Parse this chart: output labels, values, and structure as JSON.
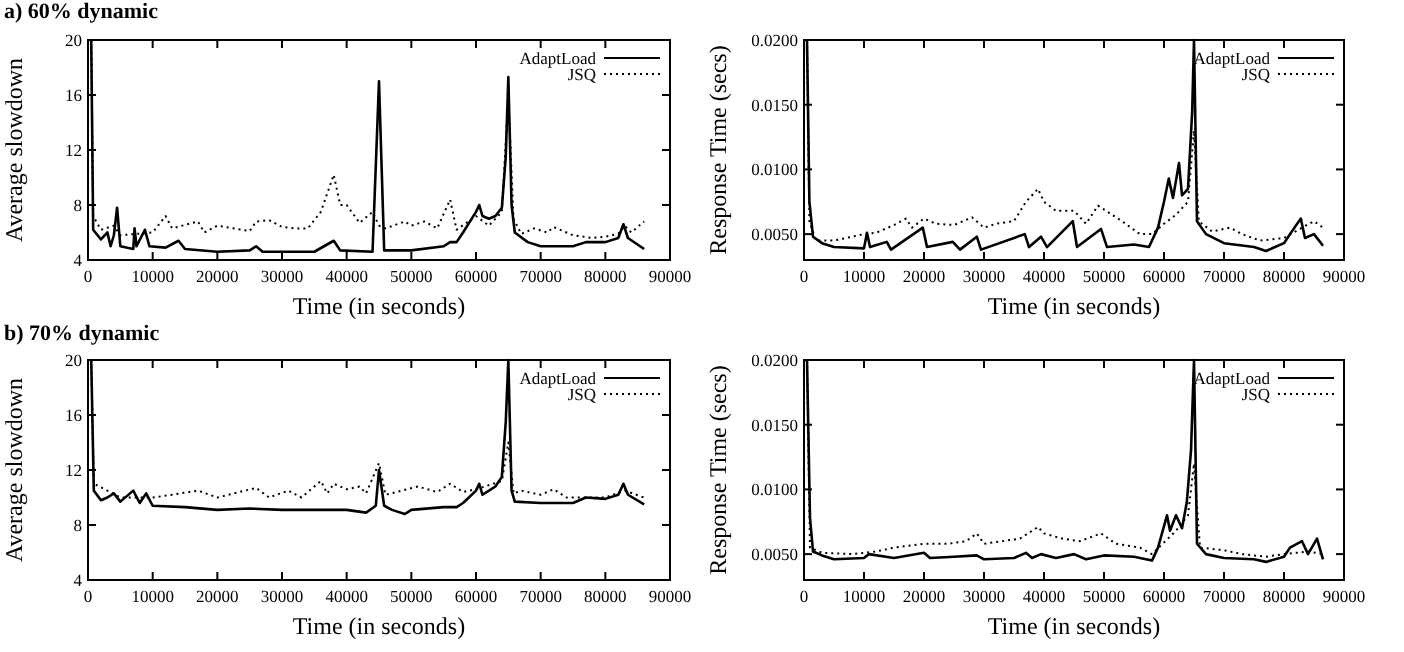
{
  "chart_data": [
    {
      "type": "line",
      "title": "a) 60% dynamic",
      "xlabel": "Time (in seconds)",
      "ylabel": "Average slowdown",
      "xlim": [
        0,
        90000
      ],
      "ylim": [
        4,
        20
      ],
      "xticks": [
        0,
        10000,
        20000,
        30000,
        40000,
        50000,
        60000,
        70000,
        80000,
        90000
      ],
      "yticks": [
        4,
        8,
        12,
        16,
        20
      ],
      "legend": "top right",
      "series": [
        {
          "name": "AdaptLoad",
          "color": "#000000",
          "line_style": "solid",
          "x": [
            500,
            800,
            2000,
            3000,
            3500,
            4000,
            4500,
            5000,
            7000,
            7200,
            7500,
            8800,
            9500,
            12000,
            14000,
            15000,
            20000,
            25000,
            26000,
            27000,
            35000,
            38000,
            39000,
            44000,
            45000,
            45800,
            50000,
            55000,
            56000,
            57000,
            58000,
            60000,
            60500,
            61000,
            62000,
            63000,
            64000,
            64600,
            65000,
            65500,
            66000,
            68000,
            70000,
            75000,
            77000,
            80000,
            82000,
            82800,
            83500,
            86000
          ],
          "values": [
            20,
            6.2,
            5.5,
            6,
            5,
            5.8,
            7.8,
            5,
            4.8,
            6.3,
            5,
            6.2,
            5,
            4.9,
            5.4,
            4.8,
            4.6,
            4.7,
            5,
            4.6,
            4.6,
            5.4,
            4.7,
            4.6,
            17,
            4.7,
            4.7,
            5,
            5.3,
            5.3,
            6,
            7.5,
            8,
            7.2,
            7,
            7.2,
            7.8,
            11.5,
            17.3,
            8,
            6,
            5.3,
            5,
            5,
            5.3,
            5.3,
            5.6,
            6.6,
            5.6,
            4.8
          ]
        },
        {
          "name": "JSQ",
          "color": "#000000",
          "line_style": "dotted",
          "x": [
            500,
            800,
            2000,
            4000,
            5000,
            10000,
            12000,
            13000,
            17000,
            18000,
            20000,
            25000,
            26000,
            28000,
            30000,
            32000,
            34000,
            36000,
            38000,
            39000,
            40000,
            42000,
            44000,
            45000,
            46000,
            49000,
            50000,
            52000,
            54000,
            56000,
            57000,
            60000,
            62000,
            64000,
            65000,
            65800,
            67000,
            69000,
            71000,
            72000,
            75000,
            78000,
            80000,
            82000,
            83000,
            84000,
            86000
          ],
          "values": [
            20,
            7.2,
            6.2,
            6.5,
            5.8,
            6,
            7.2,
            6.3,
            6.8,
            6,
            6.5,
            6.1,
            6.8,
            6.9,
            6.4,
            6.3,
            6.3,
            7.5,
            10.2,
            8,
            8,
            6.7,
            7.5,
            6.5,
            6.3,
            6.8,
            6.5,
            6.8,
            6.3,
            8.4,
            6.2,
            7.2,
            6.5,
            7.5,
            16,
            7,
            5.9,
            6.3,
            6,
            6.4,
            5.8,
            5.6,
            5.7,
            5.9,
            6.5,
            6,
            6.8
          ]
        }
      ]
    },
    {
      "type": "line",
      "xlabel": "Time (in seconds)",
      "ylabel": "Response Time (secs)",
      "xlim": [
        0,
        90000
      ],
      "ylim": [
        0.003,
        0.02
      ],
      "xticks": [
        0,
        10000,
        20000,
        30000,
        40000,
        50000,
        60000,
        70000,
        80000,
        90000
      ],
      "yticks": [
        {
          "value": 0.005,
          "label": "0.0050"
        },
        {
          "value": 0.01,
          "label": "0.0100"
        },
        {
          "value": 0.015,
          "label": "0.0150"
        },
        {
          "value": 0.02,
          "label": "0.0200"
        }
      ],
      "legend": "top right",
      "series": [
        {
          "name": "AdaptLoad",
          "color": "#000000",
          "line_style": "solid",
          "x": [
            500,
            900,
            1500,
            3000,
            5000,
            10000,
            10500,
            11000,
            13800,
            14500,
            19800,
            20500,
            24800,
            26000,
            28800,
            29500,
            36800,
            37500,
            39500,
            40500,
            44800,
            45500,
            49500,
            50500,
            55000,
            57500,
            59000,
            60000,
            60800,
            61500,
            62500,
            63000,
            64000,
            64700,
            65000,
            65500,
            67000,
            70000,
            75000,
            77000,
            80000,
            81000,
            82800,
            83500,
            85000,
            86500
          ],
          "values": [
            0.02,
            0.0075,
            0.0048,
            0.0043,
            0.004,
            0.0039,
            0.0051,
            0.004,
            0.0044,
            0.0038,
            0.0055,
            0.004,
            0.0044,
            0.0038,
            0.0048,
            0.0038,
            0.005,
            0.004,
            0.0048,
            0.004,
            0.006,
            0.004,
            0.0054,
            0.004,
            0.0042,
            0.004,
            0.0055,
            0.0075,
            0.0093,
            0.0078,
            0.0105,
            0.008,
            0.0085,
            0.0145,
            0.02,
            0.006,
            0.005,
            0.0043,
            0.004,
            0.0037,
            0.0043,
            0.005,
            0.0062,
            0.0047,
            0.005,
            0.0041
          ]
        },
        {
          "name": "JSQ",
          "color": "#000000",
          "line_style": "dotted",
          "x": [
            500,
            900,
            2000,
            5000,
            10000,
            12000,
            15000,
            17000,
            18000,
            20000,
            22000,
            25000,
            28000,
            30000,
            32000,
            35000,
            37000,
            39000,
            40000,
            42000,
            45000,
            47000,
            49000,
            51000,
            53000,
            56000,
            58000,
            60000,
            62000,
            64000,
            65000,
            65800,
            68000,
            71000,
            73000,
            76000,
            80000,
            83000,
            85000,
            86500
          ],
          "values": [
            0.02,
            0.006,
            0.0045,
            0.0045,
            0.005,
            0.0051,
            0.0057,
            0.0062,
            0.0055,
            0.0062,
            0.0058,
            0.0057,
            0.0063,
            0.0055,
            0.0058,
            0.006,
            0.0075,
            0.0085,
            0.0075,
            0.0068,
            0.0068,
            0.0058,
            0.0072,
            0.0066,
            0.006,
            0.005,
            0.005,
            0.0058,
            0.0065,
            0.0075,
            0.013,
            0.006,
            0.0052,
            0.0055,
            0.005,
            0.0045,
            0.0047,
            0.0055,
            0.006,
            0.0055
          ]
        }
      ]
    },
    {
      "type": "line",
      "title": "b) 70% dynamic",
      "xlabel": "Time (in seconds)",
      "ylabel": "Average slowdown",
      "xlim": [
        0,
        90000
      ],
      "ylim": [
        4,
        20
      ],
      "xticks": [
        0,
        10000,
        20000,
        30000,
        40000,
        50000,
        60000,
        70000,
        80000,
        90000
      ],
      "yticks": [
        4,
        8,
        12,
        16,
        20
      ],
      "legend": "top right",
      "series": [
        {
          "name": "AdaptLoad",
          "color": "#000000",
          "line_style": "solid",
          "x": [
            500,
            900,
            2000,
            3000,
            4000,
            5000,
            7000,
            8000,
            9000,
            10000,
            15000,
            20000,
            25000,
            30000,
            35000,
            40000,
            43000,
            44500,
            45000,
            45800,
            47000,
            49000,
            50000,
            55000,
            57000,
            58000,
            60000,
            60500,
            61000,
            62000,
            63000,
            64000,
            64600,
            65000,
            65500,
            66000,
            70000,
            75000,
            77000,
            80000,
            82000,
            82800,
            83500,
            86000
          ],
          "values": [
            20,
            10.5,
            9.8,
            10,
            10.3,
            9.7,
            10.5,
            9.6,
            10.3,
            9.4,
            9.3,
            9.1,
            9.2,
            9.1,
            9.1,
            9.1,
            8.9,
            9.4,
            12,
            9.4,
            9.1,
            8.8,
            9.1,
            9.3,
            9.3,
            9.6,
            10.5,
            11,
            10.2,
            10.5,
            10.8,
            11.5,
            15.5,
            20,
            10.5,
            9.7,
            9.6,
            9.6,
            10,
            9.9,
            10.2,
            11,
            10.2,
            9.5
          ]
        },
        {
          "name": "JSQ",
          "color": "#000000",
          "line_style": "dotted",
          "x": [
            500,
            900,
            3000,
            5000,
            10000,
            13000,
            17000,
            20000,
            26000,
            28000,
            31000,
            33000,
            36000,
            37000,
            38000,
            40000,
            42000,
            43000,
            45000,
            46000,
            51000,
            54000,
            56000,
            58000,
            60000,
            64000,
            65000,
            65800,
            67000,
            70000,
            72000,
            74000,
            78000,
            80000,
            83000,
            86000
          ],
          "values": [
            20,
            11,
            10.5,
            10,
            10,
            10.2,
            10.5,
            10,
            10.7,
            10,
            10.5,
            10,
            11.2,
            10.3,
            11,
            10.6,
            10.8,
            10.3,
            12.5,
            10.2,
            10.8,
            10.4,
            11,
            10.4,
            10.6,
            11.2,
            14,
            10.3,
            10.5,
            10.2,
            10.6,
            10,
            10,
            10,
            10.5,
            10
          ]
        }
      ]
    },
    {
      "type": "line",
      "xlabel": "Time (in seconds)",
      "ylabel": "Response Time (secs)",
      "xlim": [
        0,
        90000
      ],
      "ylim": [
        0.003,
        0.02
      ],
      "xticks": [
        0,
        10000,
        20000,
        30000,
        40000,
        50000,
        60000,
        70000,
        80000,
        90000
      ],
      "yticks": [
        {
          "value": 0.005,
          "label": "0.0050"
        },
        {
          "value": 0.01,
          "label": "0.0100"
        },
        {
          "value": 0.015,
          "label": "0.0150"
        },
        {
          "value": 0.02,
          "label": "0.0200"
        }
      ],
      "legend": "top right",
      "series": [
        {
          "name": "AdaptLoad",
          "color": "#000000",
          "line_style": "solid",
          "x": [
            500,
            1000,
            1500,
            3000,
            5000,
            10000,
            10800,
            15000,
            20000,
            21000,
            25000,
            28800,
            30000,
            35000,
            37000,
            38000,
            39500,
            42000,
            45000,
            47000,
            50000,
            55000,
            58000,
            59000,
            60500,
            61000,
            62000,
            63000,
            63800,
            64500,
            65000,
            65500,
            67000,
            70000,
            75000,
            77000,
            80000,
            81000,
            83000,
            84000,
            85500,
            86500
          ],
          "values": [
            0.02,
            0.0078,
            0.0052,
            0.0049,
            0.0046,
            0.0047,
            0.005,
            0.0047,
            0.0051,
            0.0047,
            0.0048,
            0.0049,
            0.0046,
            0.0047,
            0.0051,
            0.0047,
            0.005,
            0.0047,
            0.005,
            0.0046,
            0.0049,
            0.0048,
            0.0045,
            0.0055,
            0.008,
            0.0068,
            0.008,
            0.007,
            0.009,
            0.013,
            0.02,
            0.0058,
            0.005,
            0.0047,
            0.0046,
            0.0044,
            0.0048,
            0.0055,
            0.006,
            0.005,
            0.0062,
            0.0046
          ]
        },
        {
          "name": "JSQ",
          "color": "#000000",
          "line_style": "dotted",
          "x": [
            500,
            1000,
            3000,
            8000,
            12000,
            15000,
            20000,
            24000,
            27000,
            28800,
            30000,
            33000,
            36000,
            39000,
            40000,
            43000,
            46000,
            49500,
            52000,
            56000,
            58000,
            62000,
            64000,
            65000,
            66000,
            70000,
            73000,
            77000,
            80000,
            84000,
            86500
          ],
          "values": [
            0.02,
            0.0055,
            0.0051,
            0.005,
            0.0052,
            0.0055,
            0.0058,
            0.0058,
            0.006,
            0.0066,
            0.0058,
            0.006,
            0.0062,
            0.0071,
            0.0066,
            0.0062,
            0.006,
            0.0066,
            0.0058,
            0.0055,
            0.005,
            0.0068,
            0.008,
            0.012,
            0.0055,
            0.0053,
            0.005,
            0.0048,
            0.005,
            0.0052,
            0.005
          ]
        }
      ]
    }
  ]
}
